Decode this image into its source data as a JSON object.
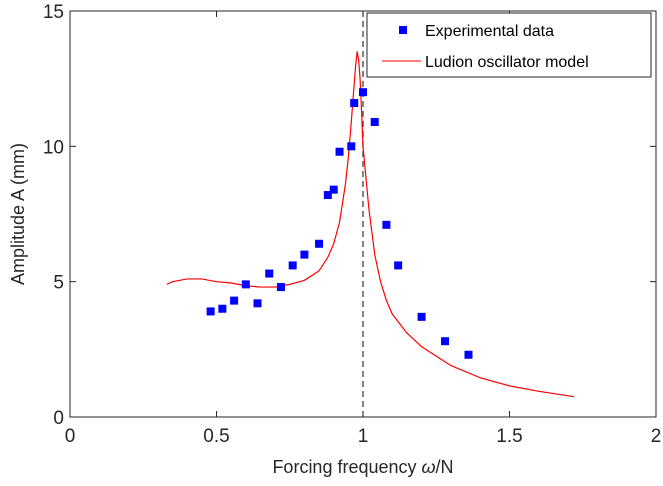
{
  "chart_data": {
    "type": "scatter",
    "xlabel": "Forcing frequency ω/N",
    "xlabel_main": "Forcing frequency ",
    "xlabel_symbol": "ω",
    "xlabel_suffix": "/N",
    "ylabel": "Amplitude A (mm)",
    "xlim": [
      0,
      2
    ],
    "ylim": [
      0,
      15
    ],
    "xticks": [
      0,
      0.5,
      1,
      1.5,
      2
    ],
    "xtick_labels": [
      "0",
      "0.5",
      "1",
      "1.5",
      "2"
    ],
    "yticks": [
      0,
      5,
      10,
      15
    ],
    "ytick_labels": [
      "0",
      "5",
      "10",
      "15"
    ],
    "legend_position": "top-right",
    "vertical_reference_line": {
      "x": 1,
      "style": "dashed",
      "color": "#404040"
    },
    "series": [
      {
        "name": "Experimental data",
        "kind": "markers",
        "marker": "square",
        "color": "#0000ff",
        "x": [
          0.48,
          0.52,
          0.56,
          0.6,
          0.64,
          0.68,
          0.72,
          0.76,
          0.8,
          0.85,
          0.88,
          0.9,
          0.92,
          0.96,
          0.97,
          1.0,
          1.04,
          1.08,
          1.12,
          1.2,
          1.28,
          1.36
        ],
        "y": [
          3.9,
          4.0,
          4.3,
          4.9,
          4.2,
          5.3,
          4.8,
          5.6,
          6.0,
          6.4,
          8.2,
          8.4,
          9.8,
          10.0,
          11.6,
          12.0,
          10.9,
          7.1,
          5.6,
          3.7,
          2.8,
          2.3
        ]
      },
      {
        "name": "Ludion oscillator model",
        "kind": "line",
        "color": "#ff0000",
        "x": [
          0.33,
          0.35,
          0.4,
          0.45,
          0.5,
          0.55,
          0.6,
          0.65,
          0.7,
          0.75,
          0.8,
          0.85,
          0.88,
          0.9,
          0.92,
          0.94,
          0.95,
          0.96,
          0.97,
          0.975,
          0.98,
          0.985,
          0.99,
          0.995,
          1.0,
          1.02,
          1.04,
          1.06,
          1.08,
          1.1,
          1.15,
          1.2,
          1.3,
          1.4,
          1.5,
          1.6,
          1.72
        ],
        "y": [
          4.9,
          5.0,
          5.1,
          5.1,
          5.0,
          4.95,
          4.85,
          4.8,
          4.8,
          4.9,
          5.05,
          5.4,
          5.9,
          6.4,
          7.2,
          8.6,
          9.6,
          10.9,
          12.3,
          13.0,
          13.5,
          13.2,
          12.5,
          11.3,
          10.0,
          7.7,
          6.0,
          5.0,
          4.3,
          3.8,
          3.1,
          2.6,
          1.9,
          1.45,
          1.15,
          0.95,
          0.75
        ]
      }
    ]
  }
}
